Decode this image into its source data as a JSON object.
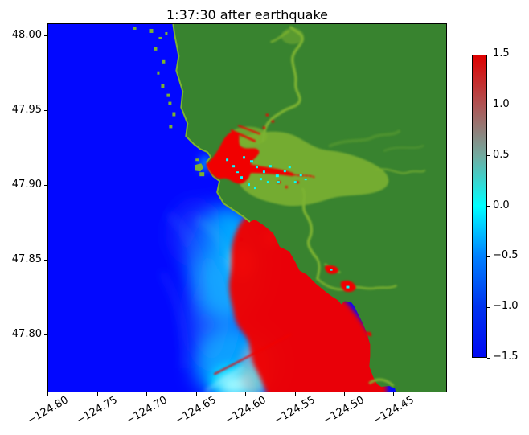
{
  "figure": {
    "title": "1:37:30 after earthquake"
  },
  "chart_data": {
    "type": "heatmap",
    "title": "1:37:30 after earthquake",
    "xlabel": "",
    "ylabel": "",
    "x_ticks": [
      -124.8,
      -124.75,
      -124.7,
      -124.65,
      -124.6,
      -124.55,
      -124.5,
      -124.45
    ],
    "y_ticks": [
      48.0,
      47.95,
      47.9,
      47.85,
      47.8
    ],
    "xlim": [
      -124.8008,
      -124.3961
    ],
    "ylim": [
      47.7618,
      48.0086
    ],
    "x_tick_rotation_deg": 30,
    "grid": false,
    "colorbar": {
      "vmin": -1.5,
      "vmax": 1.5,
      "ticks": [
        1.5,
        1.0,
        0.5,
        0.0,
        -0.5,
        -1.0,
        -1.5
      ],
      "gradient_top_to_bottom": [
        "#de0000",
        "#ae5555",
        "#72aba0",
        "#00ffff",
        "#0080ff",
        "#0033ee",
        "#0009f2"
      ]
    },
    "features": [
      "deep blue open ocean (value near -1.5) over the western half",
      "green land over the eastern half with yellow-green river valleys",
      "red flooded estuary around (-124.62, 47.91) with thin red river arm extending east",
      "large saturated red wave region (value near +1.5) hugging the coast south of 47.88",
      "bright cyan/white wavefront band between blue ocean and red wave region",
      "small olive islands along the northern coast and at the estuary mouth"
    ]
  },
  "colors": {
    "ocean": "#0208ff",
    "land": "#38832f",
    "valley": "#7cb230",
    "flood": "#f10000",
    "wavefront": "#00e6ff",
    "speckle": "#00ffff"
  }
}
